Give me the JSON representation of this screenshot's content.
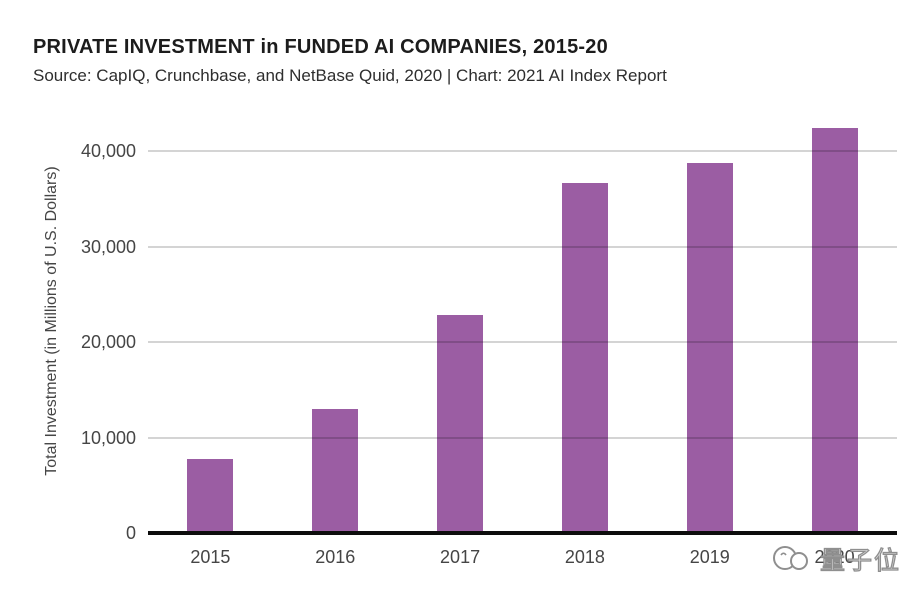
{
  "header": {
    "title": "PRIVATE INVESTMENT in FUNDED AI COMPANIES, 2015-20",
    "subtitle": "Source: CapIQ, Crunchbase, and NetBase Quid, 2020 | Chart: 2021 AI Index Report"
  },
  "chart_data": {
    "type": "bar",
    "title": "PRIVATE INVESTMENT in FUNDED AI COMPANIES, 2015-20",
    "subtitle": "Source: CapIQ, Crunchbase, and NetBase Quid, 2020 | Chart: 2021 AI Index Report",
    "categories": [
      "2015",
      "2016",
      "2017",
      "2018",
      "2019",
      "2020"
    ],
    "values": [
      7700,
      13000,
      22800,
      36600,
      38700,
      42400
    ],
    "xlabel": "",
    "ylabel": "Total Investment (in Millions of U.S. Dollars)",
    "units": "millions of U.S. dollars",
    "ylim": [
      0,
      44000
    ],
    "yticks": [
      0,
      10000,
      20000,
      30000,
      40000
    ],
    "ytick_labels": [
      "0",
      "10,000",
      "20,000",
      "30,000",
      "40,000"
    ],
    "grid": "horizontal",
    "legend_position": "none",
    "bar_color": "#9b5da3"
  },
  "colors": {
    "bar": "#9b5da3",
    "gridline": "#d2d2d2",
    "axis_line": "#0d0d0d",
    "axis_text": "#454545",
    "title_text": "#1c1c1c",
    "subtitle_text": "#2e2e2e",
    "watermark": "#8f8f8f"
  },
  "watermark": {
    "icon": "qbitai-cloud-logo",
    "text": "量子位"
  }
}
